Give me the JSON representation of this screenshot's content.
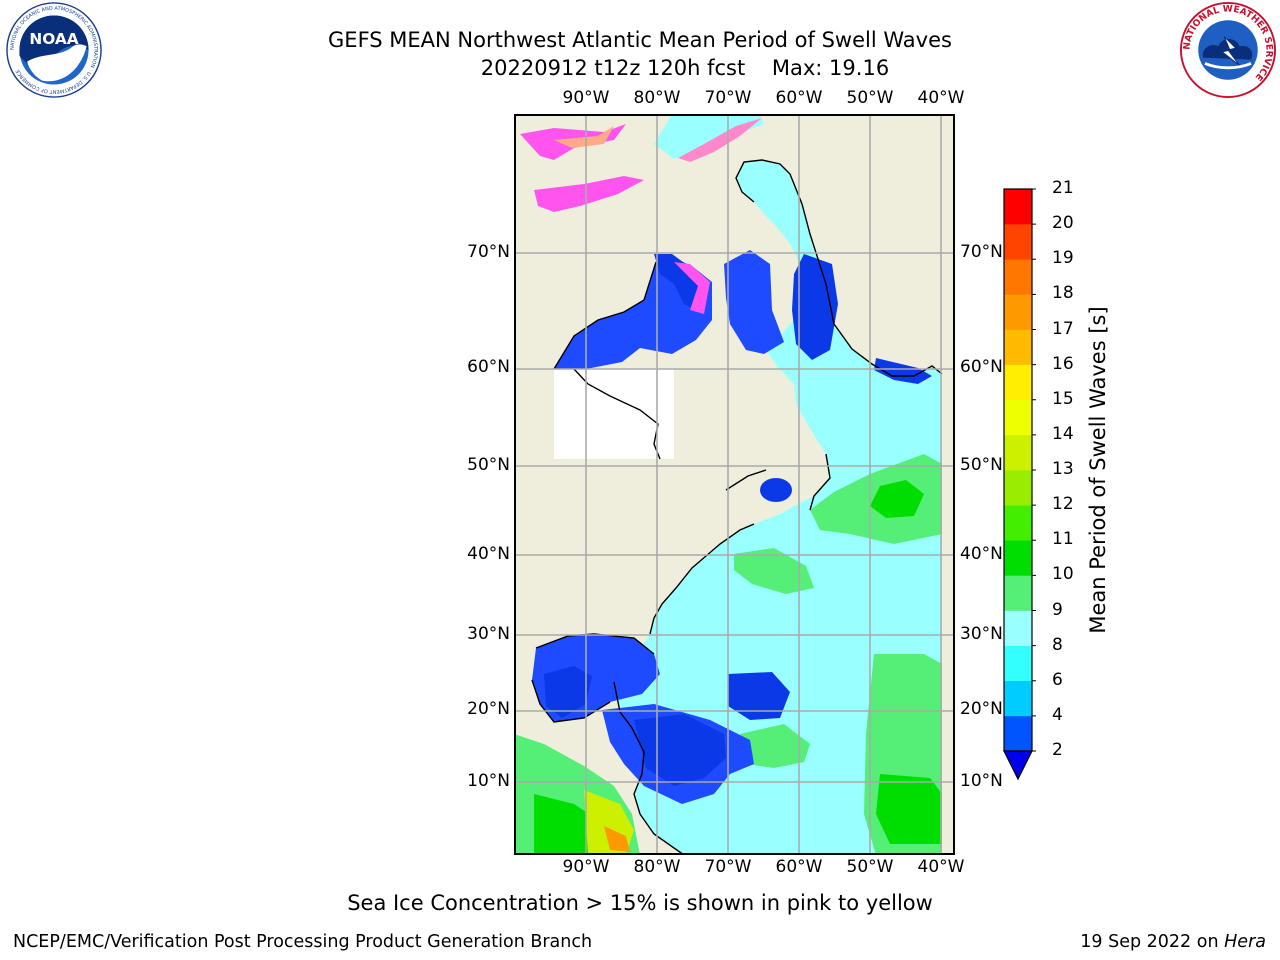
{
  "header": {
    "title_line1": "GEFS MEAN Northwest Atlantic Mean Period of Swell Waves",
    "run_info": "20220912 t12z 120h fcst",
    "max_info": "Max: 19.16"
  },
  "logos": {
    "noaa_text": "NOAA",
    "noaa_ring_text": "NATIONAL OCEANIC AND ATMOSPHERIC ADMINISTRATION · U.S. DEPARTMENT OF COMMERCE",
    "nws_ring_text": "NATIONAL WEATHER SERVICE"
  },
  "map": {
    "lon_labels": [
      "90°W",
      "80°W",
      "70°W",
      "60°W",
      "50°W",
      "40°W"
    ],
    "lat_labels": [
      "70°N",
      "60°N",
      "50°N",
      "40°N",
      "30°N",
      "20°N",
      "10°N"
    ],
    "land_color": "#efeedd",
    "ocean_fill_color": "#99ffff"
  },
  "colorbar": {
    "label": "Mean Period of Swell Waves [s]",
    "ticks": [
      "2",
      "4",
      "6",
      "8",
      "9",
      "10",
      "11",
      "12",
      "13",
      "14",
      "15",
      "16",
      "17",
      "18",
      "19",
      "20",
      "21"
    ],
    "colors": [
      "#0055ff",
      "#00ccff",
      "#33ffff",
      "#99ffff",
      "#55ee77",
      "#00dd00",
      "#44ee00",
      "#99ee00",
      "#ccf000",
      "#eeff00",
      "#ffee00",
      "#ffbb00",
      "#ff9900",
      "#ff7700",
      "#ff4400",
      "#ff0000"
    ],
    "under_color": "#0000ee"
  },
  "footer": {
    "note": "Sea Ice Concentration > 15% is shown in pink to yellow",
    "left": "NCEP/EMC/Verification Post Processing Product Generation Branch",
    "date": "19 Sep 2022 on",
    "host": "Hera"
  }
}
